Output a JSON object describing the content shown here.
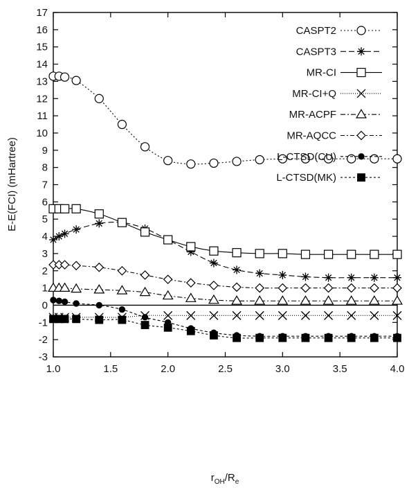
{
  "chart_data": {
    "type": "line",
    "title": "",
    "xlabel": {
      "main": "r",
      "sub1": "OH",
      "slash": "/R",
      "sub2": "e"
    },
    "ylabel": "E-E(FCI) (mHartree)",
    "xlim": [
      1.0,
      4.0
    ],
    "ylim": [
      -3,
      17
    ],
    "xticks": [
      "1.0",
      "1.5",
      "2.0",
      "2.5",
      "3.0",
      "3.5",
      "4.0"
    ],
    "yticks": [
      "-3",
      "-2",
      "-1",
      "0",
      "1",
      "2",
      "3",
      "4",
      "5",
      "6",
      "7",
      "8",
      "9",
      "10",
      "11",
      "12",
      "13",
      "14",
      "15",
      "16",
      "17"
    ],
    "grid": false,
    "legend_position": "top-right",
    "zero_line": true,
    "x": [
      1.0,
      1.05,
      1.1,
      1.2,
      1.4,
      1.6,
      1.8,
      2.0,
      2.2,
      2.4,
      2.6,
      2.8,
      3.0,
      3.2,
      3.4,
      3.6,
      3.8,
      4.0
    ],
    "series": [
      {
        "name": "CASPT2",
        "marker": "open-circle",
        "dash": "2,3",
        "values": [
          13.3,
          13.3,
          13.25,
          13.05,
          12.0,
          10.5,
          9.2,
          8.4,
          8.2,
          8.25,
          8.35,
          8.45,
          8.5,
          8.5,
          8.5,
          8.5,
          8.5,
          8.5
        ]
      },
      {
        "name": "CASPT3",
        "marker": "asterisk",
        "dash": "8,4",
        "values": [
          3.8,
          4.0,
          4.15,
          4.4,
          4.75,
          4.8,
          4.45,
          3.8,
          3.1,
          2.45,
          2.05,
          1.85,
          1.75,
          1.65,
          1.6,
          1.6,
          1.6,
          1.6
        ]
      },
      {
        "name": "MR-CI",
        "marker": "open-square",
        "dash": "",
        "values": [
          5.6,
          5.6,
          5.6,
          5.6,
          5.3,
          4.8,
          4.25,
          3.8,
          3.4,
          3.15,
          3.05,
          3.0,
          3.0,
          2.95,
          2.95,
          2.95,
          2.95,
          2.95
        ]
      },
      {
        "name": "MR-CI+Q",
        "marker": "cross",
        "dash": "1,2",
        "values": [
          -0.7,
          -0.7,
          -0.7,
          -0.7,
          -0.7,
          -0.7,
          -0.6,
          -0.6,
          -0.6,
          -0.6,
          -0.6,
          -0.6,
          -0.6,
          -0.6,
          -0.6,
          -0.6,
          -0.6,
          -0.6
        ]
      },
      {
        "name": "MR-ACPF",
        "marker": "open-triangle",
        "dash": "7,3,2,3",
        "values": [
          1.0,
          1.0,
          1.0,
          0.95,
          0.9,
          0.85,
          0.75,
          0.55,
          0.4,
          0.3,
          0.25,
          0.25,
          0.25,
          0.25,
          0.25,
          0.25,
          0.25,
          0.25
        ]
      },
      {
        "name": "MR-AQCC",
        "marker": "open-diamond",
        "dash": "6,3,2,3",
        "values": [
          2.35,
          2.35,
          2.35,
          2.3,
          2.2,
          2.0,
          1.75,
          1.5,
          1.3,
          1.15,
          1.05,
          1.0,
          1.0,
          1.0,
          1.0,
          1.0,
          1.0,
          1.0
        ]
      },
      {
        "name": "L-CTSD(CU)",
        "marker": "filled-circle",
        "dash": "4,3",
        "values": [
          0.3,
          0.25,
          0.2,
          0.1,
          0.0,
          -0.25,
          -0.7,
          -1.0,
          -1.35,
          -1.6,
          -1.75,
          -1.8,
          -1.8,
          -1.8,
          -1.8,
          -1.8,
          -1.8,
          -1.8
        ]
      },
      {
        "name": "L-CTSD(MK)",
        "marker": "filled-square",
        "dash": "3,3",
        "values": [
          -0.8,
          -0.8,
          -0.8,
          -0.8,
          -0.85,
          -0.85,
          -1.15,
          -1.3,
          -1.5,
          -1.75,
          -1.9,
          -1.9,
          -1.9,
          -1.9,
          -1.9,
          -1.9,
          -1.9,
          -1.9
        ]
      }
    ]
  }
}
